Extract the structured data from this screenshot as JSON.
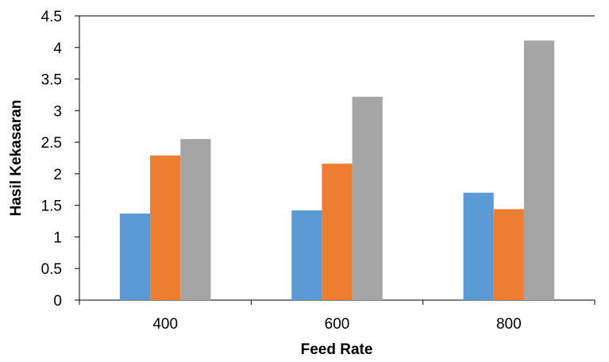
{
  "chart_data": {
    "type": "bar",
    "title": "",
    "xlabel": "Feed Rate",
    "ylabel": "Hasil Kekasaran",
    "categories": [
      "400",
      "600",
      "800"
    ],
    "series": [
      {
        "values": [
          1.37,
          1.42,
          1.7
        ],
        "color": "#5B9BD5"
      },
      {
        "values": [
          2.29,
          2.16,
          1.44
        ],
        "color": "#ED7D31"
      },
      {
        "values": [
          2.55,
          3.22,
          4.11
        ],
        "color": "#A5A5A5"
      }
    ],
    "ylim": [
      0,
      4.5
    ],
    "yticks": [
      "0",
      "0.5",
      "1",
      "1.5",
      "2",
      "2.5",
      "3",
      "3.5",
      "4",
      "4.5"
    ],
    "grid": false,
    "legend": "none"
  }
}
